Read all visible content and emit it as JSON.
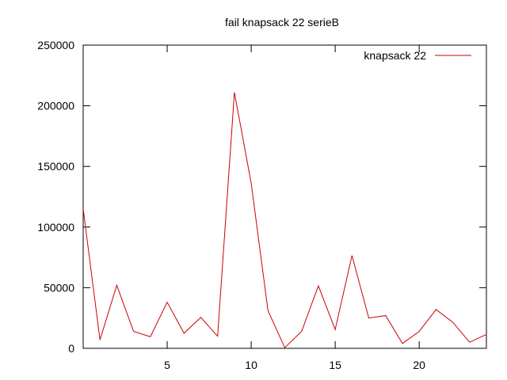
{
  "chart_data": {
    "type": "line",
    "title": "fail knapsack 22 serieB",
    "xlabel": "",
    "ylabel": "",
    "xlim": [
      0,
      24
    ],
    "ylim": [
      0,
      250000
    ],
    "x_ticks": [
      5,
      10,
      15,
      20
    ],
    "y_ticks": [
      0,
      50000,
      100000,
      150000,
      200000,
      250000
    ],
    "grid": false,
    "legend_position": "top-right",
    "series": [
      {
        "name": "knapsack 22",
        "color": "#cc0000",
        "x": [
          0,
          1,
          2,
          3,
          4,
          5,
          6,
          7,
          8,
          9,
          10,
          11,
          12,
          13,
          14,
          15,
          16,
          17,
          18,
          19,
          20,
          21,
          22,
          23,
          24
        ],
        "y": [
          115000,
          7000,
          52000,
          14000,
          9500,
          38000,
          12500,
          25500,
          10000,
          211000,
          136000,
          31000,
          500,
          14000,
          51500,
          15500,
          76500,
          25000,
          27000,
          4000,
          14000,
          32000,
          21500,
          5000,
          11500
        ]
      }
    ]
  }
}
